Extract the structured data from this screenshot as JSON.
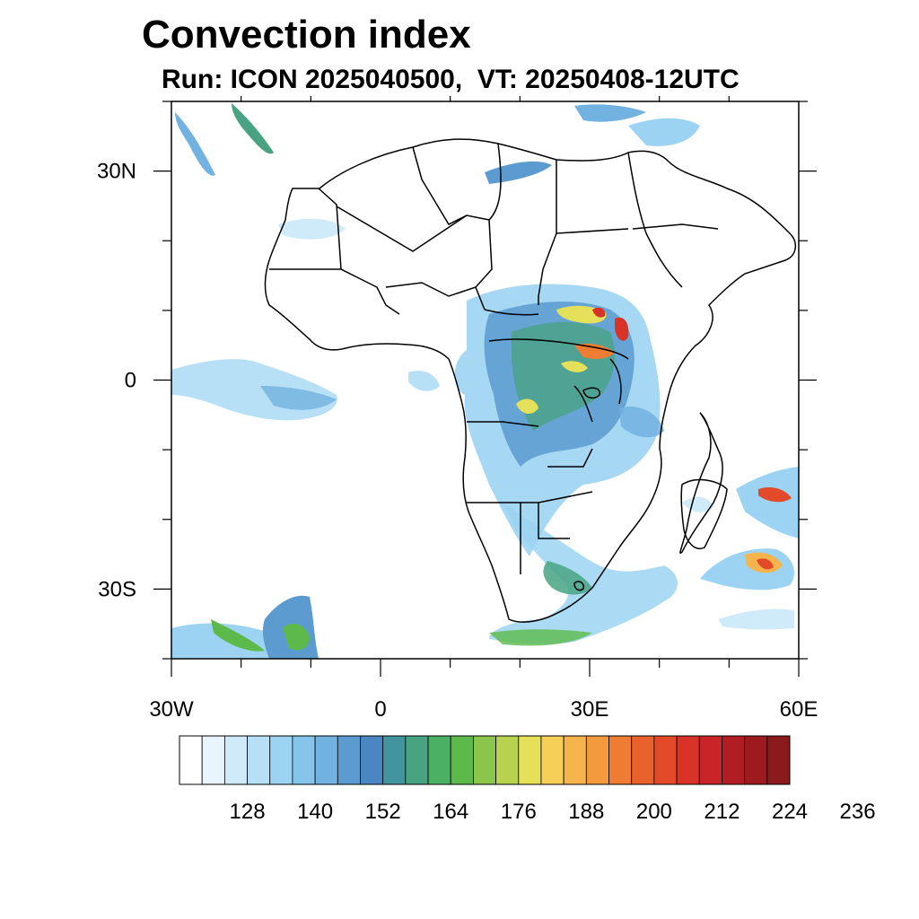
{
  "title": "Convection index",
  "subtitle": "Run: ICON 2025040500,  VT: 20250408-12UTC",
  "map": {
    "lat_labels": [
      "30N",
      "0",
      "30S"
    ],
    "lon_labels": [
      "30W",
      "0",
      "30E",
      "60E"
    ],
    "lat_values": [
      30,
      0,
      -30
    ],
    "lon_values": [
      -30,
      0,
      30,
      60
    ],
    "lon_range": [
      -30,
      60
    ],
    "lat_range": [
      -40,
      40
    ]
  },
  "colorbar": {
    "labels": [
      "128",
      "140",
      "152",
      "164",
      "176",
      "188",
      "200",
      "212",
      "224",
      "236"
    ],
    "colors": [
      "#ffffff",
      "#e8f5fc",
      "#cfeaf8",
      "#b7e0f6",
      "#9cd3f2",
      "#86c5ea",
      "#72b2e0",
      "#5b9bd0",
      "#4a86c2",
      "#44949f",
      "#48a383",
      "#4bb063",
      "#5dba4a",
      "#8cc54c",
      "#b8d24f",
      "#e4e05a",
      "#f6cf58",
      "#f6b44d",
      "#f39a3f",
      "#ef7c33",
      "#e9612b",
      "#e24a2a",
      "#d93328",
      "#c92428",
      "#b11d24",
      "#9d1b1f",
      "#8a1a1b"
    ]
  }
}
